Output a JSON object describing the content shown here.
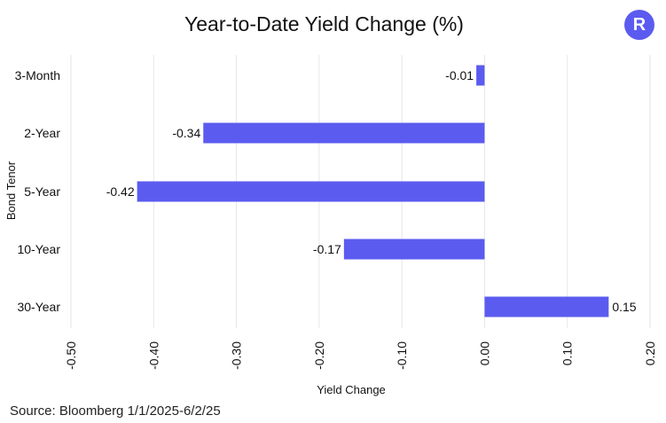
{
  "chart_data": {
    "type": "bar",
    "orientation": "horizontal",
    "title": "Year-to-Date Yield Change (%)",
    "xlabel": "Yield Change",
    "ylabel": "Bond Tenor",
    "categories": [
      "3-Month",
      "2-Year",
      "5-Year",
      "10-Year",
      "30-Year"
    ],
    "values": [
      -0.01,
      -0.34,
      -0.42,
      -0.17,
      0.15
    ],
    "value_labels": [
      "-0.01",
      "-0.34",
      "-0.42",
      "-0.17",
      "0.15"
    ],
    "xlim": [
      -0.5,
      0.2
    ],
    "xticks": [
      -0.5,
      -0.4,
      -0.3,
      -0.2,
      -0.1,
      0.0,
      0.1,
      0.2
    ],
    "xtick_labels": [
      "-0.50",
      "-0.40",
      "-0.30",
      "-0.20",
      "-0.10",
      "0.00",
      "0.10",
      "0.20"
    ],
    "grid": true,
    "bar_color": "#5b5bf0",
    "grid_color": "#e6e6e6"
  },
  "source": "Source: Bloomberg 1/1/2025-6/2/25",
  "logo": {
    "letter": "R",
    "color": "#5b5bf0"
  }
}
